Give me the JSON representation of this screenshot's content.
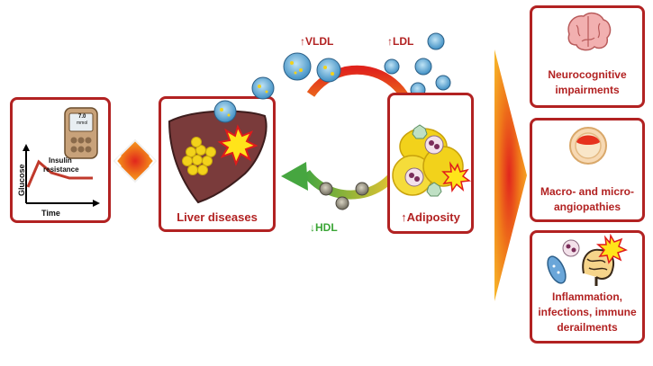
{
  "left_panel": {
    "meter_value": "7.0",
    "meter_unit": "mmol",
    "y_axis_label": "Glucose",
    "x_axis_label": "Time",
    "insulin_label_line1": "Insulin",
    "insulin_label_line2": "resistance"
  },
  "liver_panel": {
    "label": "Liver diseases"
  },
  "lipids": {
    "vldl": "↑VLDL",
    "ldl": "↑LDL",
    "hdl": "↓HDL"
  },
  "adipose_panel": {
    "label": "↑Adiposity"
  },
  "outcomes": {
    "neuro_line1": "Neurocognitive",
    "neuro_line2": "impairments",
    "angio_line1": "Macro- and micro-",
    "angio_line2": "angiopathies",
    "infl_line1": "Inflammation,",
    "infl_line2": "infections, immune",
    "infl_line3": "derailments"
  },
  "colors": {
    "panel_border": "#b22222",
    "label_red": "#b22222",
    "hdl_green": "#3aa535",
    "liver": "#7a3b3b",
    "fat": "#f2d21b"
  }
}
